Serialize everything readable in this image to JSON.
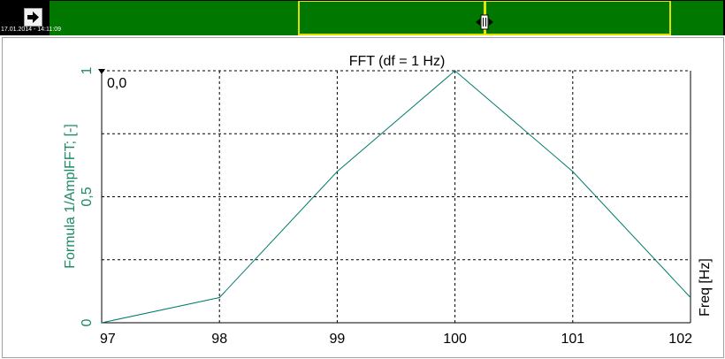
{
  "header": {
    "timestamp": "17.01.2014 - 14:11:09"
  },
  "icons": {
    "nav_button": "arrow-right-icon",
    "cursor_handle": "drag-handle-icon"
  },
  "colors": {
    "overview_bar": "#007800",
    "selection_border": "#dede00",
    "series": "#007a6e",
    "y_axis_text": "#1c8a66"
  },
  "readout": "0,0",
  "chart_data": {
    "type": "line",
    "title": "FFT (df = 1 Hz)",
    "xlabel": "Freq [Hz]",
    "ylabel": "Formula 1/AmplFFT; [-]",
    "xlim": [
      97,
      102
    ],
    "ylim": [
      0,
      1
    ],
    "x_ticks": [
      {
        "value": 97,
        "label": "97"
      },
      {
        "value": 98,
        "label": "98"
      },
      {
        "value": 99,
        "label": "99"
      },
      {
        "value": 100,
        "label": "100"
      },
      {
        "value": 101,
        "label": "101"
      },
      {
        "value": 102,
        "label": "102"
      }
    ],
    "y_ticks": [
      {
        "value": 0,
        "label": "0"
      },
      {
        "value": 0.5,
        "label": "0,5"
      },
      {
        "value": 1,
        "label": "1"
      }
    ],
    "grid_x": [
      98,
      99,
      100,
      101
    ],
    "grid_y": [
      0.25,
      0.5,
      0.75,
      1
    ],
    "grid": true,
    "series": [
      {
        "x": [
          97,
          98,
          99,
          100,
          101,
          102
        ],
        "y": [
          0,
          0.1,
          0.6,
          1.0,
          0.6,
          0.1
        ]
      }
    ]
  }
}
